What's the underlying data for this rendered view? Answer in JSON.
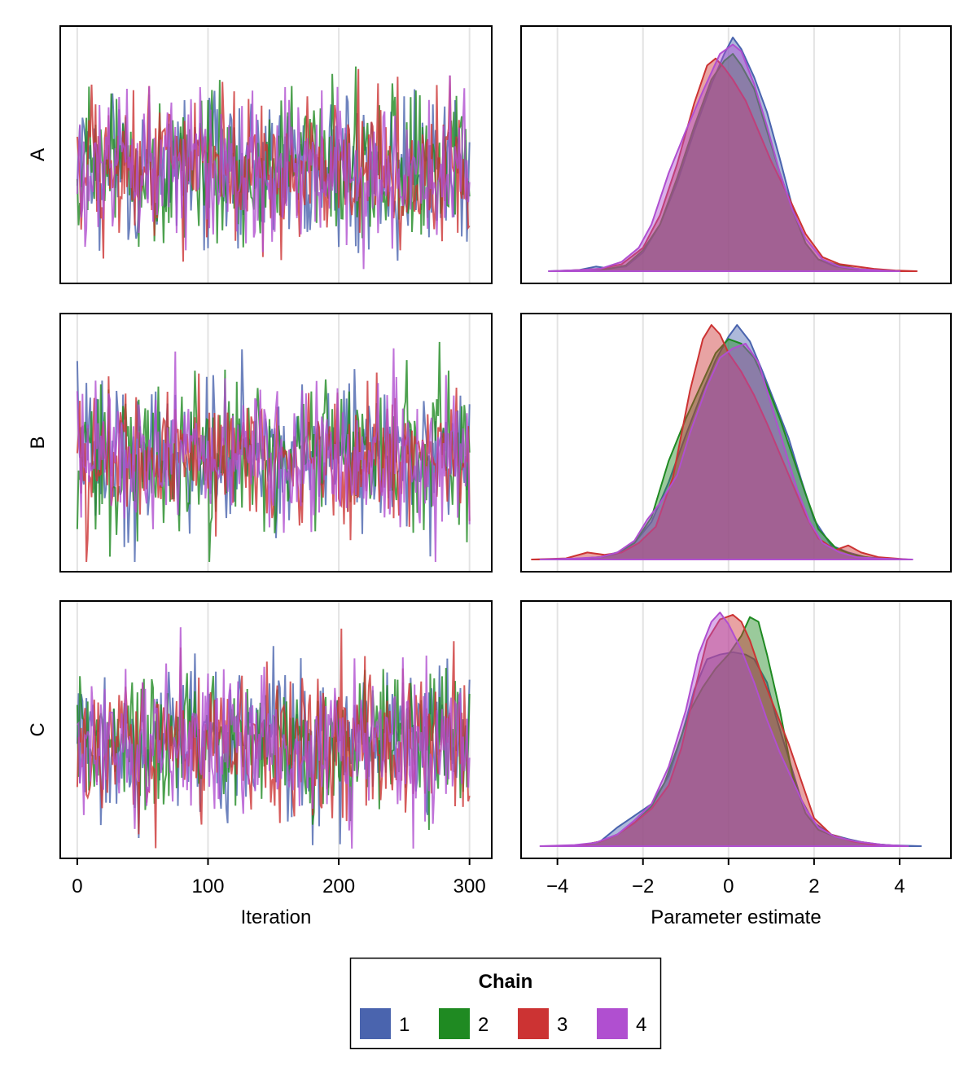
{
  "chart_data": {
    "type": "line",
    "panels": [
      "A",
      "B",
      "C"
    ],
    "trace": {
      "xlabel": "Iteration",
      "xlim": [
        -13,
        317
      ],
      "xticks": [
        0,
        100,
        200,
        300
      ],
      "xtick_labels": [
        "0",
        "100",
        "200",
        "300"
      ],
      "n_iterations": 301
    },
    "density": {
      "type": "area",
      "xlabel": "Parameter estimate",
      "xlim": [
        -4.85,
        5.2
      ],
      "xticks": [
        -4,
        -2,
        0,
        2,
        4
      ],
      "xtick_labels": [
        "−4",
        "−2",
        "0",
        "2",
        "4"
      ]
    },
    "legend": {
      "title": "Chain",
      "placement": "bottom-center",
      "entries": [
        {
          "label": "1",
          "color": "#4a64ae"
        },
        {
          "label": "2",
          "color": "#1f8a22"
        },
        {
          "label": "3",
          "color": "#cc3333"
        },
        {
          "label": "4",
          "color": "#b04fd0"
        }
      ]
    },
    "density_series": {
      "A": [
        {
          "name": "1",
          "x": [
            -4.2,
            -3.5,
            -3.1,
            -2.8,
            -2.4,
            -2,
            -1.6,
            -1.2,
            -0.8,
            -0.4,
            -0.1,
            0.1,
            0.3,
            0.6,
            0.9,
            1.2,
            1.5,
            1.8,
            2.1,
            2.5,
            3,
            3.5,
            3.8
          ],
          "y": [
            0,
            0.005,
            0.02,
            0.012,
            0.02,
            0.08,
            0.2,
            0.38,
            0.6,
            0.8,
            0.93,
            1,
            0.95,
            0.83,
            0.68,
            0.48,
            0.27,
            0.12,
            0.05,
            0.02,
            0.008,
            0.002,
            0
          ]
        },
        {
          "name": "2",
          "x": [
            -3.8,
            -3.2,
            -2.8,
            -2.4,
            -2,
            -1.6,
            -1.2,
            -0.8,
            -0.4,
            -0.1,
            0.1,
            0.3,
            0.6,
            0.9,
            1.2,
            1.5,
            1.8,
            2.1,
            2.5,
            3,
            3.4,
            3.8
          ],
          "y": [
            0,
            0.005,
            0.01,
            0.025,
            0.09,
            0.2,
            0.4,
            0.62,
            0.82,
            0.9,
            0.93,
            0.88,
            0.78,
            0.6,
            0.42,
            0.26,
            0.12,
            0.05,
            0.03,
            0.01,
            0.004,
            0
          ]
        },
        {
          "name": "3",
          "x": [
            -4.1,
            -3.5,
            -3,
            -2.5,
            -2,
            -1.6,
            -1.2,
            -0.8,
            -0.5,
            -0.3,
            -0.1,
            0.1,
            0.4,
            0.7,
            1,
            1.4,
            1.8,
            2.2,
            2.6,
            3,
            3.4,
            3.9,
            4.4
          ],
          "y": [
            0,
            0.005,
            0.01,
            0.03,
            0.1,
            0.24,
            0.46,
            0.72,
            0.88,
            0.91,
            0.87,
            0.82,
            0.73,
            0.6,
            0.47,
            0.32,
            0.16,
            0.06,
            0.03,
            0.02,
            0.01,
            0.003,
            0
          ]
        },
        {
          "name": "4",
          "x": [
            -4.2,
            -3.5,
            -3,
            -2.5,
            -2.1,
            -1.8,
            -1.4,
            -1,
            -0.6,
            -0.2,
            0.1,
            0.3,
            0.6,
            0.9,
            1.2,
            1.5,
            1.8,
            2.2,
            2.6,
            3.1,
            3.6,
            4
          ],
          "y": [
            0,
            0.005,
            0.01,
            0.04,
            0.1,
            0.2,
            0.42,
            0.6,
            0.77,
            0.93,
            0.97,
            0.94,
            0.8,
            0.62,
            0.42,
            0.26,
            0.14,
            0.05,
            0.02,
            0.008,
            0.003,
            0
          ]
        }
      ],
      "B": [
        {
          "name": "1",
          "x": [
            -4,
            -3.4,
            -3,
            -2.6,
            -2.2,
            -1.8,
            -1.4,
            -1,
            -0.6,
            -0.3,
            0,
            0.2,
            0.5,
            0.8,
            1.1,
            1.4,
            1.7,
            2,
            2.4,
            2.8,
            3.2,
            3.6,
            4
          ],
          "y": [
            0,
            0.005,
            0.01,
            0.025,
            0.07,
            0.16,
            0.33,
            0.53,
            0.72,
            0.85,
            0.95,
            1,
            0.93,
            0.8,
            0.66,
            0.52,
            0.34,
            0.17,
            0.06,
            0.03,
            0.01,
            0.004,
            0
          ]
        },
        {
          "name": "2",
          "x": [
            -4,
            -3.4,
            -3,
            -2.6,
            -2.2,
            -1.8,
            -1.4,
            -1,
            -0.6,
            -0.3,
            0,
            0.3,
            0.6,
            0.9,
            1.2,
            1.5,
            1.8,
            2.1,
            2.5,
            2.9,
            3.3,
            3.8
          ],
          "y": [
            0,
            0.005,
            0.01,
            0.03,
            0.07,
            0.18,
            0.42,
            0.6,
            0.76,
            0.88,
            0.94,
            0.92,
            0.86,
            0.74,
            0.6,
            0.44,
            0.28,
            0.13,
            0.05,
            0.02,
            0.008,
            0
          ]
        },
        {
          "name": "3",
          "x": [
            -4.6,
            -3.8,
            -3.3,
            -2.9,
            -2.5,
            -2.1,
            -1.7,
            -1.3,
            -0.9,
            -0.6,
            -0.4,
            -0.2,
            0,
            0.3,
            0.6,
            0.9,
            1.2,
            1.5,
            1.8,
            2.1,
            2.5,
            2.8,
            3.1,
            3.5,
            4.2
          ],
          "y": [
            0,
            0.005,
            0.03,
            0.02,
            0.03,
            0.07,
            0.14,
            0.35,
            0.72,
            0.94,
            1,
            0.96,
            0.88,
            0.8,
            0.7,
            0.58,
            0.45,
            0.32,
            0.19,
            0.09,
            0.04,
            0.06,
            0.03,
            0.01,
            0
          ]
        },
        {
          "name": "4",
          "x": [
            -4.4,
            -3.6,
            -3,
            -2.6,
            -2.2,
            -1.9,
            -1.6,
            -1.2,
            -0.9,
            -0.5,
            -0.2,
            0.1,
            0.4,
            0.7,
            1,
            1.3,
            1.6,
            1.9,
            2.2,
            2.6,
            3,
            3.5,
            4.3
          ],
          "y": [
            0,
            0.004,
            0.01,
            0.03,
            0.08,
            0.17,
            0.24,
            0.36,
            0.54,
            0.74,
            0.86,
            0.9,
            0.92,
            0.84,
            0.66,
            0.48,
            0.3,
            0.16,
            0.07,
            0.03,
            0.01,
            0.004,
            0
          ]
        }
      ],
      "C": [
        {
          "name": "1",
          "x": [
            -4,
            -3.4,
            -3,
            -2.6,
            -2.2,
            -1.8,
            -1.4,
            -1.1,
            -0.8,
            -0.5,
            -0.2,
            0.1,
            0.4,
            0.6,
            0.9,
            1.1,
            1.4,
            1.7,
            2,
            2.4,
            2.8,
            3.3,
            3.8,
            4.5
          ],
          "y": [
            0,
            0.005,
            0.02,
            0.08,
            0.13,
            0.18,
            0.3,
            0.47,
            0.67,
            0.8,
            0.82,
            0.83,
            0.82,
            0.8,
            0.7,
            0.56,
            0.38,
            0.2,
            0.1,
            0.05,
            0.03,
            0.01,
            0.004,
            0
          ]
        },
        {
          "name": "2",
          "x": [
            -4,
            -3.4,
            -3,
            -2.6,
            -2.2,
            -1.8,
            -1.5,
            -1.2,
            -0.9,
            -0.6,
            -0.3,
            0,
            0.3,
            0.5,
            0.7,
            0.9,
            1.2,
            1.5,
            1.8,
            2.1,
            2.5,
            3,
            3.5,
            4
          ],
          "y": [
            0,
            0.005,
            0.02,
            0.05,
            0.1,
            0.17,
            0.27,
            0.42,
            0.58,
            0.68,
            0.76,
            0.82,
            0.9,
            0.98,
            0.96,
            0.82,
            0.58,
            0.3,
            0.14,
            0.07,
            0.04,
            0.02,
            0.008,
            0
          ]
        },
        {
          "name": "3",
          "x": [
            -4,
            -3.4,
            -3,
            -2.6,
            -2.2,
            -1.8,
            -1.4,
            -1.1,
            -0.8,
            -0.5,
            -0.2,
            0.1,
            0.3,
            0.5,
            0.8,
            1.1,
            1.4,
            1.7,
            2,
            2.4,
            2.9,
            3.4,
            4
          ],
          "y": [
            0,
            0.005,
            0.02,
            0.05,
            0.1,
            0.16,
            0.26,
            0.42,
            0.66,
            0.88,
            0.97,
            0.99,
            0.96,
            0.88,
            0.72,
            0.58,
            0.44,
            0.28,
            0.12,
            0.05,
            0.02,
            0.006,
            0
          ]
        },
        {
          "name": "4",
          "x": [
            -4.4,
            -3.6,
            -3.1,
            -2.6,
            -2.2,
            -1.8,
            -1.4,
            -1,
            -0.7,
            -0.4,
            -0.2,
            0,
            0.3,
            0.6,
            0.9,
            1.2,
            1.5,
            1.8,
            2.1,
            2.5,
            3,
            3.6,
            4.2
          ],
          "y": [
            0,
            0.005,
            0.015,
            0.05,
            0.11,
            0.18,
            0.34,
            0.58,
            0.82,
            0.96,
            1,
            0.95,
            0.84,
            0.7,
            0.54,
            0.4,
            0.28,
            0.16,
            0.08,
            0.04,
            0.02,
            0.006,
            0
          ]
        }
      ]
    }
  }
}
